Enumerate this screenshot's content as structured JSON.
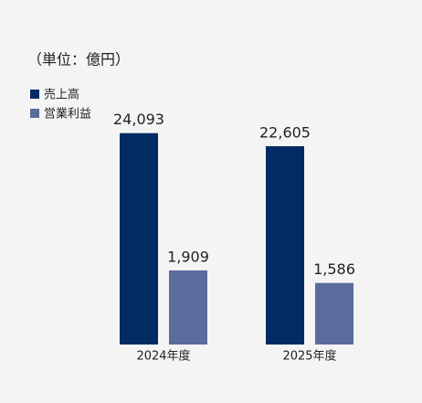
{
  "chart_data": {
    "type": "bar",
    "subtitle": "（単位：億円）",
    "categories": [
      "2024年度",
      "2025年度"
    ],
    "series": [
      {
        "name": "売上高",
        "color": "#002b63",
        "values": [
          24093,
          22605
        ],
        "value_labels": [
          "24,093",
          "22,605"
        ]
      },
      {
        "name": "営業利益",
        "color": "#5a6c9c",
        "values": [
          1909,
          1586
        ],
        "value_labels": [
          "1,909",
          "1,586"
        ],
        "axis": "y2"
      }
    ],
    "ylim": [
      0,
      25000
    ],
    "y2lim": [
      0,
      5650
    ],
    "legend": "upper left"
  }
}
